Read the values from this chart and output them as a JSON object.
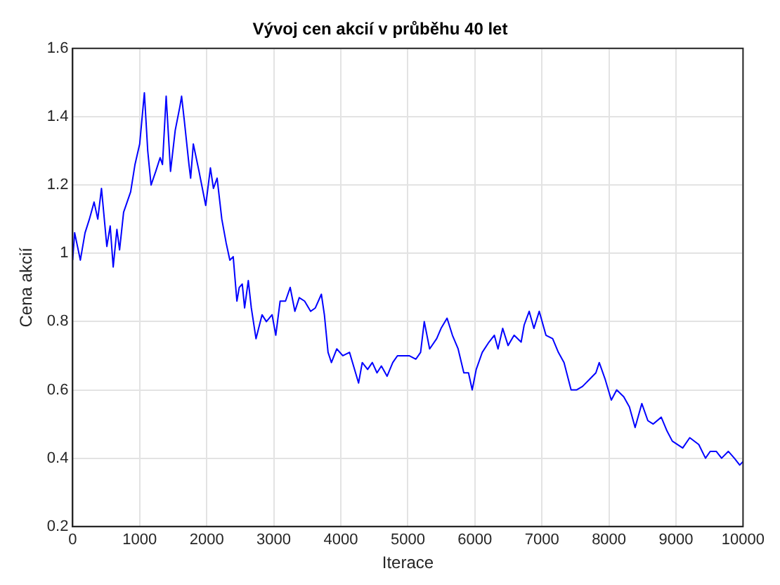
{
  "chart_data": {
    "type": "line",
    "title": "Vývoj cen akcií v průběhu 40 let",
    "xlabel": "Iterace",
    "ylabel": "Cena akcií",
    "series": [
      {
        "color": "#0000ff",
        "x": [
          0,
          30,
          115,
          185,
          250,
          320,
          375,
          430,
          510,
          560,
          605,
          660,
          700,
          760,
          865,
          930,
          1000,
          1070,
          1120,
          1170,
          1240,
          1305,
          1340,
          1395,
          1460,
          1530,
          1600,
          1625,
          1665,
          1735,
          1760,
          1800,
          1885,
          1985,
          2055,
          2100,
          2155,
          2225,
          2290,
          2345,
          2395,
          2450,
          2485,
          2530,
          2565,
          2620,
          2665,
          2735,
          2825,
          2890,
          2975,
          3030,
          3095,
          3175,
          3245,
          3315,
          3380,
          3460,
          3550,
          3620,
          3710,
          3755,
          3810,
          3860,
          3940,
          4030,
          4130,
          4265,
          4320,
          4400,
          4470,
          4540,
          4605,
          4690,
          4775,
          4845,
          4945,
          5020,
          5120,
          5190,
          5245,
          5325,
          5430,
          5495,
          5585,
          5665,
          5750,
          5835,
          5905,
          5960,
          6020,
          6110,
          6210,
          6290,
          6345,
          6415,
          6495,
          6585,
          6690,
          6735,
          6810,
          6880,
          6960,
          7060,
          7160,
          7245,
          7330,
          7435,
          7515,
          7605,
          7705,
          7805,
          7855,
          7945,
          8035,
          8115,
          8220,
          8305,
          8390,
          8490,
          8580,
          8660,
          8780,
          8865,
          8945,
          9100,
          9205,
          9340,
          9440,
          9510,
          9600,
          9680,
          9780,
          9870,
          9950,
          10000
        ],
        "values": [
          0.98,
          1.06,
          0.98,
          1.06,
          1.1,
          1.15,
          1.1,
          1.19,
          1.02,
          1.08,
          0.96,
          1.07,
          1.01,
          1.12,
          1.18,
          1.26,
          1.32,
          1.47,
          1.3,
          1.2,
          1.24,
          1.28,
          1.26,
          1.46,
          1.24,
          1.36,
          1.43,
          1.46,
          1.39,
          1.26,
          1.22,
          1.32,
          1.24,
          1.14,
          1.25,
          1.19,
          1.22,
          1.1,
          1.03,
          0.98,
          0.99,
          0.86,
          0.9,
          0.91,
          0.84,
          0.92,
          0.84,
          0.75,
          0.82,
          0.8,
          0.82,
          0.76,
          0.86,
          0.86,
          0.9,
          0.83,
          0.87,
          0.86,
          0.83,
          0.84,
          0.88,
          0.82,
          0.71,
          0.68,
          0.72,
          0.7,
          0.71,
          0.62,
          0.68,
          0.66,
          0.68,
          0.65,
          0.67,
          0.64,
          0.68,
          0.7,
          0.7,
          0.7,
          0.69,
          0.71,
          0.8,
          0.72,
          0.75,
          0.78,
          0.81,
          0.76,
          0.72,
          0.65,
          0.65,
          0.6,
          0.66,
          0.71,
          0.74,
          0.76,
          0.72,
          0.78,
          0.73,
          0.76,
          0.74,
          0.79,
          0.83,
          0.78,
          0.83,
          0.76,
          0.75,
          0.71,
          0.68,
          0.6,
          0.6,
          0.61,
          0.63,
          0.65,
          0.68,
          0.63,
          0.57,
          0.6,
          0.58,
          0.55,
          0.49,
          0.56,
          0.51,
          0.5,
          0.52,
          0.48,
          0.45,
          0.43,
          0.46,
          0.44,
          0.4,
          0.42,
          0.42,
          0.4,
          0.42,
          0.4,
          0.38,
          0.39
        ]
      }
    ],
    "xlim": [
      0,
      10000
    ],
    "xticks": [
      0,
      1000,
      2000,
      3000,
      4000,
      5000,
      6000,
      7000,
      8000,
      9000,
      10000
    ],
    "ylim": [
      0.2,
      1.6
    ],
    "yticks": [
      0.2,
      0.4,
      0.6,
      0.8,
      1,
      1.2,
      1.4,
      1.6
    ],
    "grid": true,
    "legend": false,
    "marker": "none",
    "line_style": "solid"
  }
}
